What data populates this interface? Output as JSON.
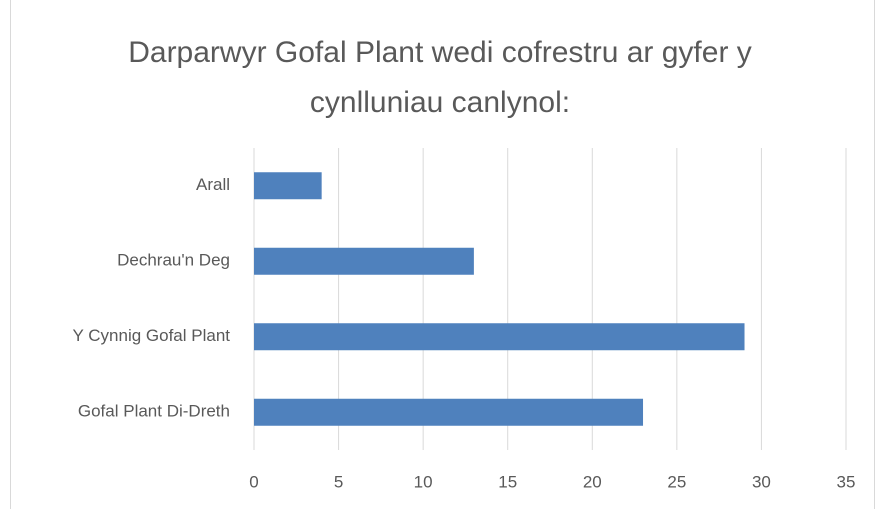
{
  "chart_data": {
    "type": "bar",
    "orientation": "horizontal",
    "title": "Darparwyr Gofal Plant wedi cofrestru ar gyfer y cynlluniau canlynol:",
    "categories": [
      "Arall",
      "Dechrau'n Deg",
      "Y Cynnig Gofal Plant",
      "Gofal Plant Di-Dreth"
    ],
    "values": [
      4,
      13,
      29,
      23
    ],
    "color": "#4f81bd",
    "xlim": [
      0,
      35
    ],
    "xticks": [
      0,
      5,
      10,
      15,
      20,
      25,
      30,
      35
    ],
    "grid": true
  }
}
